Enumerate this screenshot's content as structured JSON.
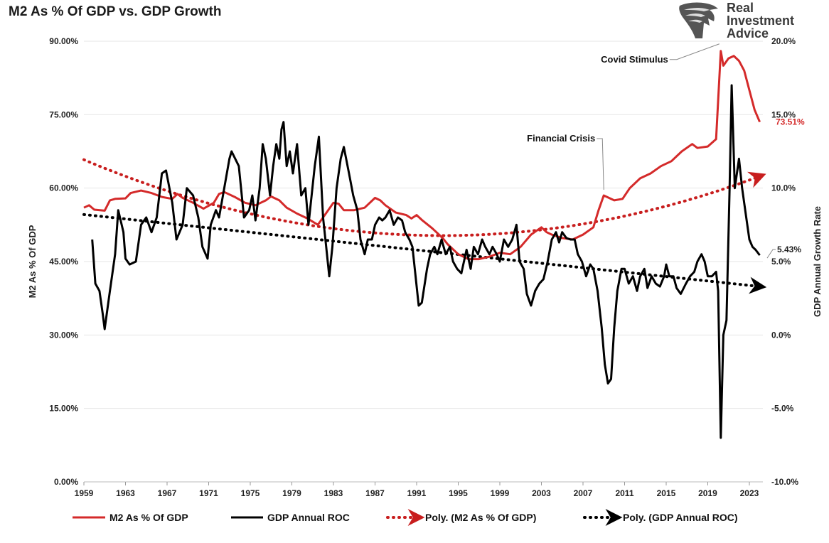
{
  "chart_data": {
    "type": "line",
    "title": "M2 As % Of GDP vs. GDP Growth",
    "ylabel_left": "M2 As % Of GDP",
    "ylabel_right": "GDP Annual Growth Rate",
    "xlim": [
      1959,
      2024.3
    ],
    "ylim_left": [
      0,
      90
    ],
    "ylim_right": [
      -10,
      20
    ],
    "x_ticks": [
      "1959",
      "1963",
      "1967",
      "1971",
      "1975",
      "1979",
      "1983",
      "1987",
      "1991",
      "1995",
      "1999",
      "2003",
      "2007",
      "2011",
      "2015",
      "2019",
      "2023"
    ],
    "y_ticks_left": [
      "0.00%",
      "15.00%",
      "30.00%",
      "45.00%",
      "60.00%",
      "75.00%",
      "90.00%"
    ],
    "y_ticks_right": [
      "-10.0%",
      "-5.0%",
      "0.0%",
      "5.0%",
      "10.0%",
      "15.0%",
      "20.0%"
    ],
    "grid": true,
    "legend_position": "bottom",
    "colors": {
      "m2": "#d42a2a",
      "gdp": "#000000",
      "m2_trend": "#c81e1e",
      "gdp_trend": "#000000",
      "last_value_label": "#d42a2a"
    },
    "series": [
      {
        "name": "M2 As % Of GDP",
        "axis": "left",
        "points": [
          [
            1959.0,
            56.0
          ],
          [
            1959.5,
            56.5
          ],
          [
            1960.0,
            55.6
          ],
          [
            1961.0,
            55.4
          ],
          [
            1961.5,
            57.5
          ],
          [
            1962.0,
            57.8
          ],
          [
            1963.0,
            57.9
          ],
          [
            1963.5,
            59.0
          ],
          [
            1964.5,
            59.5
          ],
          [
            1965.5,
            59.0
          ],
          [
            1966.5,
            58.2
          ],
          [
            1967.5,
            57.8
          ],
          [
            1968.0,
            58.8
          ],
          [
            1968.5,
            58.0
          ],
          [
            1969.5,
            57.0
          ],
          [
            1970.5,
            55.8
          ],
          [
            1971.5,
            57.0
          ],
          [
            1972.0,
            58.8
          ],
          [
            1972.5,
            59.2
          ],
          [
            1973.5,
            58.2
          ],
          [
            1974.5,
            57.0
          ],
          [
            1975.5,
            56.5
          ],
          [
            1976.5,
            57.5
          ],
          [
            1977.0,
            58.3
          ],
          [
            1977.8,
            57.5
          ],
          [
            1978.5,
            56.0
          ],
          [
            1979.5,
            54.8
          ],
          [
            1980.5,
            53.8
          ],
          [
            1981.5,
            52.5
          ],
          [
            1982.0,
            54.0
          ],
          [
            1983.0,
            57.0
          ],
          [
            1983.5,
            56.8
          ],
          [
            1984.0,
            55.5
          ],
          [
            1985.0,
            55.5
          ],
          [
            1986.0,
            56.0
          ],
          [
            1987.0,
            58.0
          ],
          [
            1987.5,
            57.5
          ],
          [
            1988.0,
            56.5
          ],
          [
            1989.0,
            55.0
          ],
          [
            1990.0,
            54.5
          ],
          [
            1990.5,
            53.8
          ],
          [
            1991.0,
            54.5
          ],
          [
            1991.5,
            53.5
          ],
          [
            1992.5,
            51.8
          ],
          [
            1993.5,
            49.8
          ],
          [
            1994.0,
            48.5
          ],
          [
            1995.0,
            46.5
          ],
          [
            1996.0,
            45.5
          ],
          [
            1997.0,
            45.5
          ],
          [
            1998.0,
            46.0
          ],
          [
            1999.0,
            46.8
          ],
          [
            2000.0,
            46.5
          ],
          [
            2001.0,
            48.0
          ],
          [
            2002.0,
            50.5
          ],
          [
            2003.0,
            52.0
          ],
          [
            2003.5,
            51.0
          ],
          [
            2004.0,
            50.5
          ],
          [
            2005.0,
            49.8
          ],
          [
            2006.0,
            49.5
          ],
          [
            2007.0,
            50.5
          ],
          [
            2008.0,
            52.0
          ],
          [
            2008.5,
            55.5
          ],
          [
            2009.0,
            58.5
          ],
          [
            2010.0,
            57.5
          ],
          [
            2010.8,
            57.8
          ],
          [
            2011.5,
            60.0
          ],
          [
            2012.5,
            62.0
          ],
          [
            2013.5,
            63.0
          ],
          [
            2014.5,
            64.5
          ],
          [
            2015.5,
            65.5
          ],
          [
            2016.5,
            67.5
          ],
          [
            2017.5,
            69.0
          ],
          [
            2018.0,
            68.2
          ],
          [
            2019.0,
            68.5
          ],
          [
            2019.8,
            70.0
          ],
          [
            2020.25,
            88.0
          ],
          [
            2020.5,
            85.0
          ],
          [
            2021.0,
            86.5
          ],
          [
            2021.5,
            87.0
          ],
          [
            2022.0,
            86.0
          ],
          [
            2022.5,
            84.0
          ],
          [
            2023.0,
            80.0
          ],
          [
            2023.5,
            76.0
          ],
          [
            2024.0,
            73.51
          ]
        ]
      },
      {
        "name": "GDP Annual ROC",
        "axis": "right",
        "points": [
          [
            1959.8,
            6.5
          ],
          [
            1960.1,
            3.5
          ],
          [
            1960.5,
            3.0
          ],
          [
            1960.8,
            1.5
          ],
          [
            1961.0,
            0.4
          ],
          [
            1961.5,
            3.0
          ],
          [
            1962.0,
            5.5
          ],
          [
            1962.3,
            8.5
          ],
          [
            1962.8,
            7.0
          ],
          [
            1963.0,
            5.2
          ],
          [
            1963.4,
            4.8
          ],
          [
            1964.0,
            5.0
          ],
          [
            1964.5,
            7.5
          ],
          [
            1965.0,
            8.0
          ],
          [
            1965.5,
            7.0
          ],
          [
            1966.0,
            8.0
          ],
          [
            1966.5,
            11.0
          ],
          [
            1966.9,
            11.2
          ],
          [
            1967.5,
            9.0
          ],
          [
            1967.9,
            6.5
          ],
          [
            1968.5,
            7.5
          ],
          [
            1968.9,
            10.0
          ],
          [
            1969.5,
            9.5
          ],
          [
            1970.0,
            8.0
          ],
          [
            1970.4,
            6.0
          ],
          [
            1970.9,
            5.2
          ],
          [
            1971.2,
            7.5
          ],
          [
            1971.7,
            8.5
          ],
          [
            1972.0,
            8.0
          ],
          [
            1972.5,
            10.0
          ],
          [
            1973.0,
            12.0
          ],
          [
            1973.2,
            12.5
          ],
          [
            1973.9,
            11.5
          ],
          [
            1974.4,
            8.0
          ],
          [
            1974.9,
            8.5
          ],
          [
            1975.2,
            9.5
          ],
          [
            1975.5,
            7.8
          ],
          [
            1975.9,
            10.0
          ],
          [
            1976.2,
            13.0
          ],
          [
            1976.5,
            12.0
          ],
          [
            1976.9,
            9.5
          ],
          [
            1977.2,
            11.5
          ],
          [
            1977.5,
            13.0
          ],
          [
            1977.8,
            12.0
          ],
          [
            1978.0,
            14.0
          ],
          [
            1978.2,
            14.5
          ],
          [
            1978.5,
            11.5
          ],
          [
            1978.8,
            12.5
          ],
          [
            1979.1,
            11.0
          ],
          [
            1979.5,
            13.0
          ],
          [
            1979.9,
            9.5
          ],
          [
            1980.3,
            10.0
          ],
          [
            1980.6,
            7.5
          ],
          [
            1980.9,
            9.5
          ],
          [
            1981.2,
            11.5
          ],
          [
            1981.6,
            13.5
          ],
          [
            1982.0,
            8.0
          ],
          [
            1982.3,
            6.0
          ],
          [
            1982.6,
            4.0
          ],
          [
            1982.9,
            6.0
          ],
          [
            1983.3,
            10.0
          ],
          [
            1983.7,
            12.0
          ],
          [
            1984.0,
            12.8
          ],
          [
            1984.5,
            11.0
          ],
          [
            1984.9,
            9.5
          ],
          [
            1985.3,
            8.5
          ],
          [
            1985.6,
            6.5
          ],
          [
            1986.0,
            5.5
          ],
          [
            1986.3,
            6.5
          ],
          [
            1986.7,
            6.5
          ],
          [
            1987.0,
            7.5
          ],
          [
            1987.4,
            8.0
          ],
          [
            1987.7,
            7.8
          ],
          [
            1988.0,
            8.0
          ],
          [
            1988.4,
            8.5
          ],
          [
            1988.8,
            7.5
          ],
          [
            1989.2,
            8.0
          ],
          [
            1989.6,
            7.8
          ],
          [
            1989.9,
            7.0
          ],
          [
            1990.3,
            6.5
          ],
          [
            1990.6,
            6.0
          ],
          [
            1990.9,
            4.0
          ],
          [
            1991.2,
            2.0
          ],
          [
            1991.5,
            2.2
          ],
          [
            1992.0,
            4.5
          ],
          [
            1992.3,
            5.5
          ],
          [
            1992.7,
            6.0
          ],
          [
            1993.0,
            5.5
          ],
          [
            1993.4,
            6.5
          ],
          [
            1993.8,
            5.5
          ],
          [
            1994.2,
            6.0
          ],
          [
            1994.5,
            5.0
          ],
          [
            1994.9,
            4.5
          ],
          [
            1995.3,
            4.2
          ],
          [
            1995.8,
            5.8
          ],
          [
            1996.2,
            4.5
          ],
          [
            1996.5,
            6.0
          ],
          [
            1996.9,
            5.5
          ],
          [
            1997.3,
            6.5
          ],
          [
            1997.6,
            6.0
          ],
          [
            1998.0,
            5.5
          ],
          [
            1998.3,
            6.0
          ],
          [
            1998.7,
            5.5
          ],
          [
            1999.0,
            5.0
          ],
          [
            1999.4,
            6.5
          ],
          [
            1999.8,
            6.0
          ],
          [
            2000.2,
            6.5
          ],
          [
            2000.6,
            7.5
          ],
          [
            2000.9,
            5.0
          ],
          [
            2001.3,
            4.5
          ],
          [
            2001.6,
            2.8
          ],
          [
            2002.0,
            2.0
          ],
          [
            2002.4,
            3.0
          ],
          [
            2002.8,
            3.5
          ],
          [
            2003.2,
            3.8
          ],
          [
            2003.6,
            5.0
          ],
          [
            2004.0,
            6.5
          ],
          [
            2004.4,
            7.0
          ],
          [
            2004.7,
            6.3
          ],
          [
            2005.0,
            7.0
          ],
          [
            2005.4,
            6.6
          ],
          [
            2005.8,
            6.5
          ],
          [
            2006.2,
            6.5
          ],
          [
            2006.5,
            5.5
          ],
          [
            2006.9,
            5.0
          ],
          [
            2007.3,
            4.0
          ],
          [
            2007.7,
            4.8
          ],
          [
            2008.0,
            4.5
          ],
          [
            2008.4,
            3.0
          ],
          [
            2008.8,
            0.5
          ],
          [
            2009.1,
            -2.0
          ],
          [
            2009.4,
            -3.3
          ],
          [
            2009.7,
            -3.0
          ],
          [
            2010.0,
            0.5
          ],
          [
            2010.3,
            3.0
          ],
          [
            2010.7,
            4.5
          ],
          [
            2011.0,
            4.5
          ],
          [
            2011.4,
            3.5
          ],
          [
            2011.8,
            4.0
          ],
          [
            2012.2,
            3.0
          ],
          [
            2012.5,
            4.0
          ],
          [
            2012.9,
            4.5
          ],
          [
            2013.2,
            3.2
          ],
          [
            2013.6,
            4.0
          ],
          [
            2014.0,
            3.5
          ],
          [
            2014.4,
            3.3
          ],
          [
            2014.8,
            4.0
          ],
          [
            2015.0,
            4.8
          ],
          [
            2015.3,
            4.0
          ],
          [
            2015.7,
            4.0
          ],
          [
            2016.0,
            3.2
          ],
          [
            2016.4,
            2.8
          ],
          [
            2016.9,
            3.5
          ],
          [
            2017.3,
            4.0
          ],
          [
            2017.7,
            4.3
          ],
          [
            2018.0,
            5.0
          ],
          [
            2018.4,
            5.5
          ],
          [
            2018.7,
            5.0
          ],
          [
            2019.0,
            4.0
          ],
          [
            2019.4,
            4.0
          ],
          [
            2019.8,
            4.3
          ],
          [
            2020.0,
            3.0
          ],
          [
            2020.25,
            -7.0
          ],
          [
            2020.5,
            0.0
          ],
          [
            2020.8,
            1.0
          ],
          [
            2021.1,
            10.0
          ],
          [
            2021.3,
            17.0
          ],
          [
            2021.6,
            10.0
          ],
          [
            2022.0,
            12.0
          ],
          [
            2022.3,
            10.0
          ],
          [
            2022.7,
            8.0
          ],
          [
            2023.0,
            6.5
          ],
          [
            2023.3,
            6.0
          ],
          [
            2023.6,
            5.8
          ],
          [
            2024.0,
            5.43
          ]
        ]
      },
      {
        "name": "Poly. (M2 As % Of GDP)",
        "axis": "left",
        "fn": "quadratic",
        "vertex": {
          "x": 1993.5,
          "y": 50.3
        },
        "start": {
          "x": 1959,
          "y": 65.8
        },
        "points": []
      },
      {
        "name": "Poly. (GDP Annual ROC)",
        "axis": "right",
        "points": [
          [
            1959.0,
            8.2
          ],
          [
            2024.0,
            3.3
          ]
        ]
      }
    ],
    "last_values": {
      "m2": "73.51%",
      "gdp": "5.43%"
    },
    "annotations": [
      {
        "text": "Covid Stimulus",
        "x": 2020.25,
        "y_left": 88.0
      },
      {
        "text": "Financial Crisis",
        "x": 2009.0,
        "y_left": 58.5
      }
    ]
  },
  "legend": [
    {
      "label": "M2 As % Of GDP",
      "style": "solid",
      "color": "#d42a2a"
    },
    {
      "label": "GDP Annual ROC",
      "style": "solid",
      "color": "#000000"
    },
    {
      "label": "Poly. (M2 As % Of GDP)",
      "style": "dotted-arrow",
      "color": "#c81e1e"
    },
    {
      "label": "Poly. (GDP Annual ROC)",
      "style": "dotted-arrow",
      "color": "#000000"
    }
  ],
  "logo": {
    "line1": "Real",
    "line2": "Investment",
    "line3": "Advice",
    "icon": "eagle-head-icon"
  }
}
